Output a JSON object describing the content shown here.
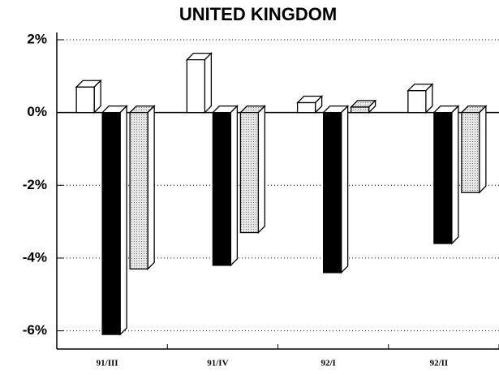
{
  "chart_data": {
    "type": "bar3d",
    "title": "UNITED KINGDOM",
    "categories": [
      "91/III",
      "91/IV",
      "92/I",
      "92/II"
    ],
    "series": [
      {
        "color": "#ffffff",
        "values": [
          0.7,
          1.45,
          0.27,
          0.6
        ]
      },
      {
        "color": "#000000",
        "values": [
          -6.1,
          -4.2,
          -4.4,
          -3.6
        ]
      },
      {
        "color": "#d4d4d4",
        "values": [
          -4.3,
          -3.3,
          0.15,
          -2.2
        ]
      }
    ],
    "ylim": [
      -6.5,
      2.2
    ],
    "yticks": [
      {
        "value": 2,
        "label": "2%"
      },
      {
        "value": 0,
        "label": "0%"
      },
      {
        "value": -2,
        "label": "-2%"
      },
      {
        "value": -4,
        "label": "-4%"
      },
      {
        "value": -6,
        "label": "-6%"
      }
    ],
    "grid": true
  }
}
